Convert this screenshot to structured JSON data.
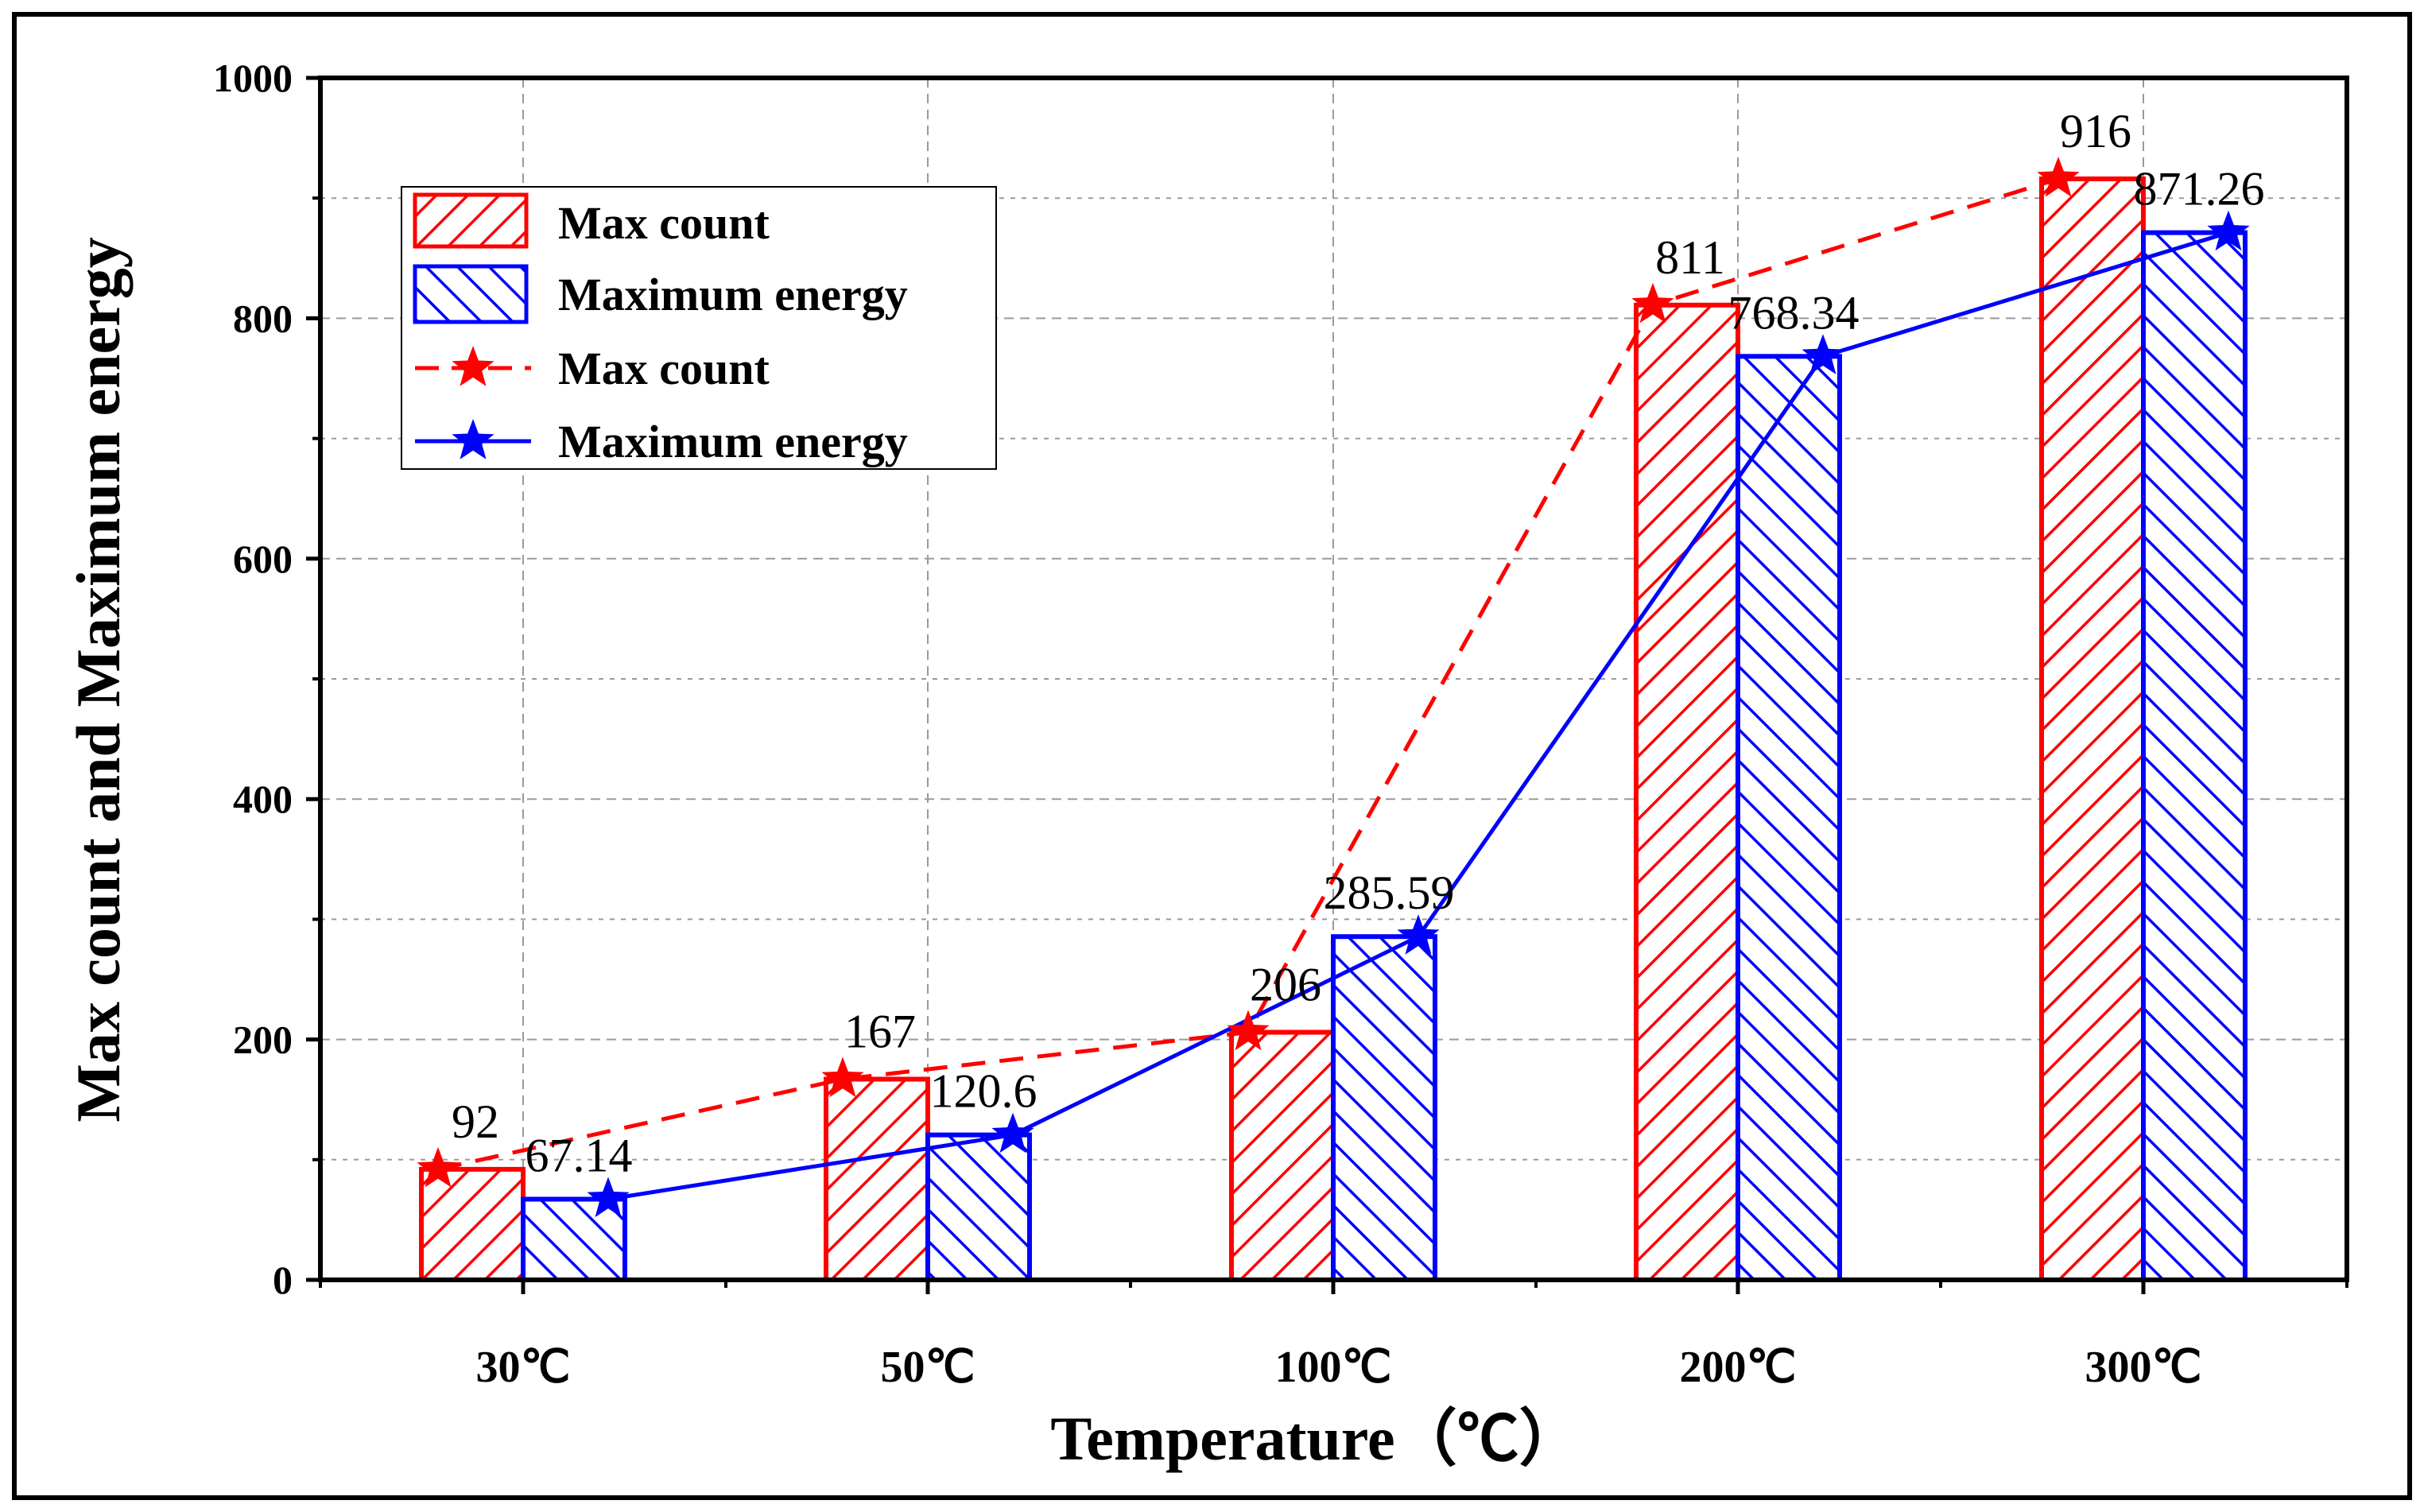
{
  "chart_data": {
    "type": "bar",
    "title": "",
    "xlabel": "Temperature（℃）",
    "ylabel": "Max count and Maximum energy",
    "categories": [
      "30℃",
      "50℃",
      "100℃",
      "200℃",
      "300℃"
    ],
    "ylim": [
      0,
      1000
    ],
    "yticks": [
      "0",
      "200",
      "400",
      "600",
      "800",
      "1000"
    ],
    "ytick_values": [
      0,
      200,
      400,
      600,
      800,
      1000
    ],
    "grid": true,
    "legend_position": "top-left",
    "series": [
      {
        "name": "Max count",
        "kind": "bar",
        "hatch": "diagonal-down",
        "color": "#ff0000",
        "values": [
          92,
          167,
          206,
          811,
          916
        ],
        "labels": [
          "92",
          "167",
          "206",
          "811",
          "916"
        ]
      },
      {
        "name": "Maximum energy",
        "kind": "bar",
        "hatch": "diagonal-up",
        "color": "#0000ff",
        "values": [
          67.14,
          120.6,
          285.59,
          768.34,
          871.26
        ],
        "labels": [
          "67.14",
          "120.6",
          "285.59",
          "768.34",
          "871.26"
        ]
      },
      {
        "name": "Max count",
        "kind": "line",
        "style": "dashed",
        "marker": "star",
        "color": "#ff0000",
        "values": [
          92,
          167,
          206,
          811,
          916
        ]
      },
      {
        "name": "Maximum energy",
        "kind": "line",
        "style": "solid",
        "marker": "star",
        "color": "#0000ff",
        "values": [
          67.14,
          120.6,
          285.59,
          768.34,
          871.26
        ]
      }
    ]
  }
}
